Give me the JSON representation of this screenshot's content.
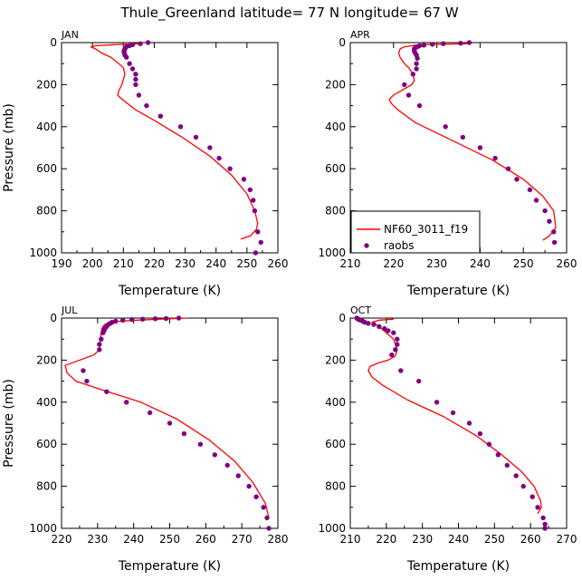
{
  "title": "Thule_Greenland   latitude= 77 N longitude= 67 W",
  "colors": {
    "model": "#ff0000",
    "obs": "#800080",
    "axis": "#000000"
  },
  "legend": {
    "model_label": "NF60_3011_f19",
    "obs_label": "raobs"
  },
  "chart_data": [
    {
      "type": "scatter",
      "panel": "JAN",
      "xlabel": "Temperature (K)",
      "ylabel": "Pressure (mb)",
      "xlim": [
        190,
        260
      ],
      "ylim": [
        1000,
        0
      ],
      "xticks": [
        190,
        200,
        210,
        220,
        230,
        240,
        250,
        260
      ],
      "yticks": [
        0,
        200,
        400,
        600,
        800,
        1000
      ],
      "series": [
        {
          "name": "NF60_3011_f19",
          "kind": "line",
          "x": [
            215,
            207,
            201,
            199.5,
            201,
            203,
            206,
            208.5,
            210,
            210.5,
            209.5,
            208.5,
            208.2,
            208.8,
            210.5,
            214,
            220,
            229,
            238,
            245,
            250,
            252.5,
            253.5,
            253,
            251,
            248
          ],
          "y": [
            5,
            10,
            15,
            20,
            30,
            50,
            70,
            100,
            120,
            150,
            200,
            230,
            250,
            260,
            280,
            320,
            370,
            450,
            540,
            630,
            720,
            800,
            860,
            890,
            920,
            935
          ]
        },
        {
          "name": "raobs",
          "kind": "points",
          "x": [
            218,
            215.5,
            213,
            212,
            211,
            210.5,
            210.2,
            210.3,
            210.5,
            211,
            212,
            213,
            214,
            214,
            214,
            215,
            217.5,
            222,
            228.5,
            233.5,
            238,
            241,
            244.5,
            249,
            251,
            252,
            252.5,
            253.5,
            254.5,
            252.8
          ],
          "y": [
            0,
            5,
            10,
            15,
            20,
            30,
            40,
            50,
            60,
            70,
            100,
            125,
            150,
            175,
            200,
            250,
            300,
            350,
            400,
            450,
            500,
            550,
            600,
            650,
            700,
            750,
            800,
            900,
            950,
            1000
          ]
        }
      ]
    },
    {
      "type": "scatter",
      "panel": "APR",
      "xlabel": "Temperature (K)",
      "ylabel": "Pressure (mb)",
      "xlim": [
        210,
        260
      ],
      "ylim": [
        1000,
        0
      ],
      "xticks": [
        210,
        220,
        230,
        240,
        250,
        260
      ],
      "yticks": [
        0,
        200,
        400,
        600,
        800,
        1000
      ],
      "series": [
        {
          "name": "NF60_3011_f19",
          "kind": "line",
          "x": [
            237,
            226,
            222.5,
            221.5,
            221.2,
            221.5,
            222.5,
            223.5,
            224.5,
            224.8,
            224.2,
            222.5,
            220,
            219,
            219.5,
            221,
            225,
            233,
            243,
            250,
            254.5,
            257,
            257.5,
            256,
            254.5
          ],
          "y": [
            5,
            10,
            20,
            30,
            50,
            70,
            100,
            120,
            150,
            180,
            200,
            220,
            250,
            270,
            290,
            320,
            380,
            460,
            560,
            650,
            730,
            800,
            880,
            920,
            940
          ]
        },
        {
          "name": "raobs",
          "kind": "points",
          "x": [
            237.5,
            235.5,
            231.5,
            229,
            227,
            226,
            225.5,
            225,
            224.8,
            224.8,
            225,
            225.3,
            225.5,
            225.3,
            225.3,
            224.5,
            222.5,
            223.5,
            226,
            232,
            236,
            240,
            243.5,
            246.5,
            248.5,
            251.5,
            253,
            255,
            256,
            257,
            257.2
          ],
          "y": [
            0,
            3,
            5,
            8,
            12,
            15,
            20,
            25,
            30,
            40,
            50,
            60,
            75,
            100,
            125,
            150,
            200,
            250,
            300,
            400,
            450,
            500,
            550,
            600,
            650,
            700,
            750,
            800,
            850,
            900,
            950
          ]
        }
      ]
    },
    {
      "type": "scatter",
      "panel": "JUL",
      "xlabel": "Temperature (K)",
      "ylabel": "Pressure (mb)",
      "xlim": [
        220,
        280
      ],
      "ylim": [
        1000,
        0
      ],
      "xticks": [
        220,
        230,
        240,
        250,
        260,
        270,
        280
      ],
      "yticks": [
        0,
        200,
        400,
        600,
        800,
        1000
      ],
      "series": [
        {
          "name": "NF60_3011_f19",
          "kind": "line",
          "x": [
            255,
            247,
            241,
            236,
            233.5,
            232,
            231.5,
            231.2,
            231,
            230.8,
            230.5,
            229,
            221,
            221.5,
            224,
            231,
            242,
            252,
            261,
            268,
            273,
            276.5,
            277.5
          ],
          "y": [
            0,
            5,
            10,
            15,
            20,
            30,
            40,
            50,
            70,
            100,
            150,
            175,
            225,
            260,
            300,
            340,
            400,
            480,
            580,
            680,
            780,
            880,
            950
          ]
        },
        {
          "name": "raobs",
          "kind": "points",
          "x": [
            252.5,
            249,
            246,
            242.5,
            239.5,
            237,
            235,
            234,
            233.5,
            233,
            232.5,
            232,
            231.8,
            231.5,
            231,
            230.5,
            230.5,
            226,
            227,
            232.5,
            238,
            244.5,
            250,
            254,
            258.5,
            262.5,
            266,
            269,
            272,
            274,
            276,
            277,
            277.5
          ],
          "y": [
            0,
            2,
            3,
            5,
            7,
            10,
            15,
            20,
            25,
            30,
            40,
            50,
            60,
            70,
            100,
            125,
            150,
            250,
            300,
            350,
            400,
            450,
            500,
            550,
            600,
            650,
            700,
            750,
            800,
            850,
            900,
            950,
            1000
          ]
        }
      ]
    },
    {
      "type": "scatter",
      "panel": "OCT",
      "xlabel": "Temperature (K)",
      "ylabel": "Pressure (mb)",
      "xlim": [
        210,
        270
      ],
      "ylim": [
        1000,
        0
      ],
      "xticks": [
        210,
        220,
        230,
        240,
        250,
        260,
        270
      ],
      "yticks": [
        0,
        200,
        400,
        600,
        800,
        1000
      ],
      "series": [
        {
          "name": "NF60_3011_f19",
          "kind": "line",
          "x": [
            222,
            218,
            216,
            218,
            220,
            222,
            223,
            222.5,
            220.5,
            217.5,
            215.5,
            215,
            216,
            219,
            226,
            236,
            245,
            252,
            257.5,
            261,
            262.8,
            263,
            262
          ],
          "y": [
            5,
            10,
            20,
            40,
            70,
            100,
            150,
            180,
            200,
            215,
            230,
            250,
            280,
            320,
            390,
            470,
            560,
            650,
            730,
            800,
            870,
            900,
            930
          ]
        },
        {
          "name": "raobs",
          "kind": "points",
          "x": [
            211.8,
            212,
            212.2,
            212.5,
            213,
            213.5,
            214,
            215,
            216.5,
            218,
            219.5,
            220.5,
            222,
            223,
            223,
            222.5,
            221.5,
            224,
            229,
            234,
            238.5,
            243,
            246,
            248.5,
            251,
            253.5,
            256,
            258,
            260.5,
            262,
            263.5,
            264,
            264
          ],
          "y": [
            0,
            3,
            5,
            8,
            10,
            15,
            20,
            25,
            30,
            40,
            50,
            60,
            70,
            100,
            125,
            150,
            175,
            250,
            300,
            400,
            450,
            500,
            550,
            600,
            650,
            700,
            750,
            800,
            850,
            900,
            950,
            980,
            1000
          ]
        }
      ]
    }
  ]
}
